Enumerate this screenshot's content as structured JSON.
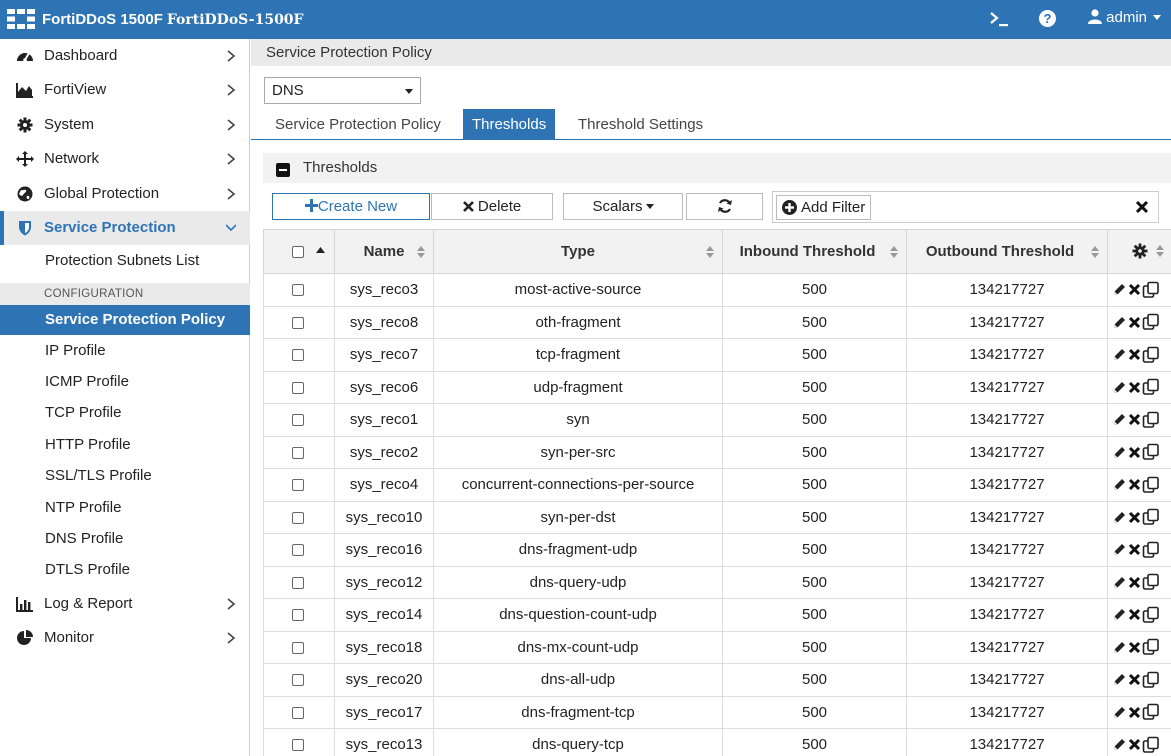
{
  "header": {
    "product": "FortiDDoS 1500F",
    "hostname": "FortiDDoS-1500F",
    "user": "admin"
  },
  "sidebar": {
    "items": [
      {
        "label": "Dashboard",
        "icon": "dashboard-icon"
      },
      {
        "label": "FortiView",
        "icon": "area-chart-icon"
      },
      {
        "label": "System",
        "icon": "gear-icon"
      },
      {
        "label": "Network",
        "icon": "arrows-icon"
      },
      {
        "label": "Global Protection",
        "icon": "globe-icon"
      },
      {
        "label": "Service Protection",
        "icon": "shield-icon"
      },
      {
        "label": "Log & Report",
        "icon": "bar-chart-icon"
      },
      {
        "label": "Monitor",
        "icon": "pie-chart-icon"
      }
    ],
    "sub_subnets": "Protection Subnets List",
    "config_header": "CONFIGURATION",
    "config_items": [
      "Service Protection Policy",
      "IP Profile",
      "ICMP Profile",
      "TCP Profile",
      "HTTP Profile",
      "SSL/TLS Profile",
      "NTP Profile",
      "DNS Profile",
      "DTLS Profile"
    ]
  },
  "main": {
    "breadcrumb": "Service Protection Policy",
    "service_select": "DNS",
    "tabs": [
      "Service Protection Policy",
      "Thresholds",
      "Threshold Settings"
    ],
    "active_tab": "Thresholds",
    "panel_title": "Thresholds",
    "toolbar": {
      "create": "Create New",
      "delete": "Delete",
      "scalars": "Scalars",
      "add_filter": "Add Filter"
    },
    "columns": [
      "Name",
      "Type",
      "Inbound Threshold",
      "Outbound Threshold"
    ],
    "rows": [
      {
        "name": "sys_reco3",
        "type": "most-active-source",
        "inbound": "500",
        "outbound": "134217727"
      },
      {
        "name": "sys_reco8",
        "type": "oth-fragment",
        "inbound": "500",
        "outbound": "134217727"
      },
      {
        "name": "sys_reco7",
        "type": "tcp-fragment",
        "inbound": "500",
        "outbound": "134217727"
      },
      {
        "name": "sys_reco6",
        "type": "udp-fragment",
        "inbound": "500",
        "outbound": "134217727"
      },
      {
        "name": "sys_reco1",
        "type": "syn",
        "inbound": "500",
        "outbound": "134217727"
      },
      {
        "name": "sys_reco2",
        "type": "syn-per-src",
        "inbound": "500",
        "outbound": "134217727"
      },
      {
        "name": "sys_reco4",
        "type": "concurrent-connections-per-source",
        "inbound": "500",
        "outbound": "134217727"
      },
      {
        "name": "sys_reco10",
        "type": "syn-per-dst",
        "inbound": "500",
        "outbound": "134217727"
      },
      {
        "name": "sys_reco16",
        "type": "dns-fragment-udp",
        "inbound": "500",
        "outbound": "134217727"
      },
      {
        "name": "sys_reco12",
        "type": "dns-query-udp",
        "inbound": "500",
        "outbound": "134217727"
      },
      {
        "name": "sys_reco14",
        "type": "dns-question-count-udp",
        "inbound": "500",
        "outbound": "134217727"
      },
      {
        "name": "sys_reco18",
        "type": "dns-mx-count-udp",
        "inbound": "500",
        "outbound": "134217727"
      },
      {
        "name": "sys_reco20",
        "type": "dns-all-udp",
        "inbound": "500",
        "outbound": "134217727"
      },
      {
        "name": "sys_reco17",
        "type": "dns-fragment-tcp",
        "inbound": "500",
        "outbound": "134217727"
      },
      {
        "name": "sys_reco13",
        "type": "dns-query-tcp",
        "inbound": "500",
        "outbound": "134217727"
      }
    ]
  },
  "colors": {
    "accent": "#2e74b5",
    "header_bg": "#2e74b5",
    "panel_bg": "#f2f2f2"
  }
}
